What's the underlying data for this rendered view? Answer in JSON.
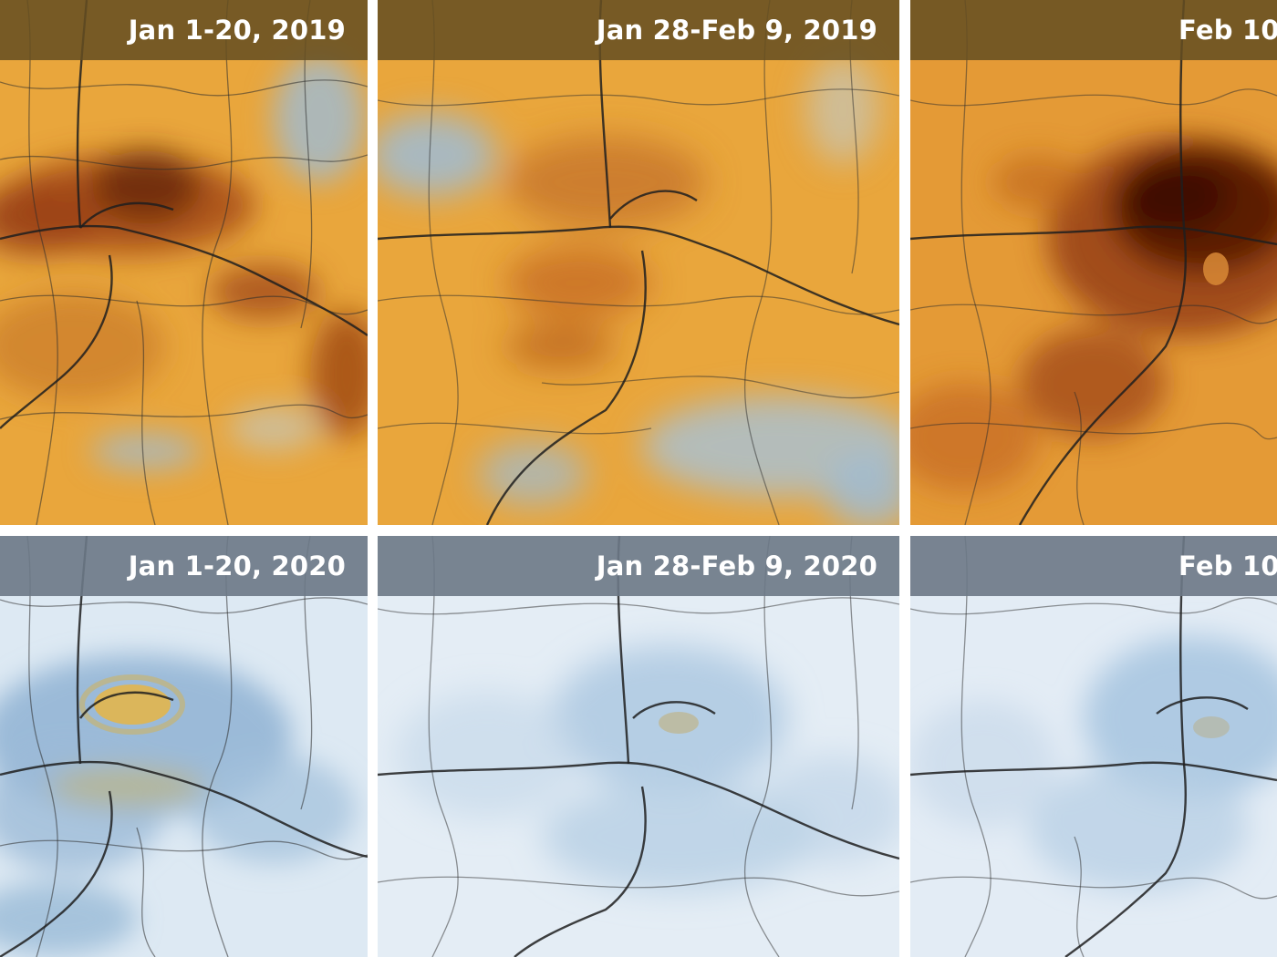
{
  "panels": [
    {
      "label": "Jan 1-20, 2019",
      "year": 2019,
      "column": 1,
      "theme": "pollution-high"
    },
    {
      "label": "Jan 28-Feb 9, 2019",
      "year": 2019,
      "column": 2,
      "theme": "pollution-medium"
    },
    {
      "label": "Feb 10",
      "year": 2019,
      "column": 3,
      "theme": "pollution-very-high"
    },
    {
      "label": "Jan 1-20, 2020",
      "year": 2020,
      "column": 1,
      "theme": "pollution-low"
    },
    {
      "label": "Jan 28-Feb 9, 2020",
      "year": 2020,
      "column": 2,
      "theme": "pollution-very-low"
    },
    {
      "label": "Feb 10",
      "year": 2020,
      "column": 3,
      "theme": "pollution-very-low"
    }
  ],
  "colors": {
    "label_bar_2019": "#6b5426",
    "label_bar_2020": "#6f7c8a",
    "map_orange": "#e9a63c",
    "map_brown": "#5a1c04",
    "map_blue_light": "#dde9f3",
    "map_blue": "#8fb3d3",
    "road": "#2b2b2b"
  }
}
